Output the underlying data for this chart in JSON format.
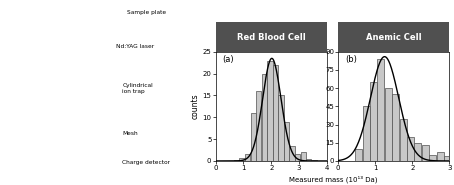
{
  "panel_a_title": "Red Blood Cell",
  "panel_b_title": "Anemic Cell",
  "panel_a_label": "(a)",
  "panel_b_label": "(b)",
  "xlabel": "Measured mass (10¹³ Da)",
  "ylabel": "counts",
  "panel_a_xlim": [
    0,
    4
  ],
  "panel_a_ylim": [
    0,
    25
  ],
  "panel_b_xlim": [
    0,
    3
  ],
  "panel_b_ylim": [
    0,
    90
  ],
  "panel_a_yticks": [
    0,
    5,
    10,
    15,
    20,
    25
  ],
  "panel_b_yticks": [
    0,
    15,
    30,
    45,
    60,
    75,
    90
  ],
  "panel_a_xticks": [
    0,
    1,
    2,
    3,
    4
  ],
  "panel_b_xticks": [
    0,
    1,
    2,
    3
  ],
  "bar_color": "#c8c8c8",
  "bar_edgecolor": "#505050",
  "curve_color": "#000000",
  "title_bg_color": "#505050",
  "title_text_color": "#ffffff",
  "panel_a_bar_centers": [
    0.75,
    0.95,
    1.15,
    1.35,
    1.55,
    1.75,
    1.95,
    2.15,
    2.35,
    2.55,
    2.75,
    2.95,
    3.15,
    3.35,
    3.55
  ],
  "panel_a_bar_heights": [
    0.3,
    0.7,
    1.5,
    11.0,
    16.0,
    20.0,
    23.0,
    22.0,
    15.0,
    9.0,
    3.5,
    1.5,
    2.0,
    0.5,
    0.3
  ],
  "panel_a_gauss_mean": 2.02,
  "panel_a_gauss_std": 0.33,
  "panel_a_gauss_amp": 23.5,
  "panel_b_bar_centers": [
    0.55,
    0.75,
    0.95,
    1.15,
    1.35,
    1.55,
    1.75,
    1.95,
    2.15,
    2.35,
    2.55,
    2.75,
    2.95
  ],
  "panel_b_bar_heights": [
    10.0,
    45.0,
    65.0,
    84.0,
    60.0,
    55.0,
    35.0,
    20.0,
    15.0,
    13.0,
    5.0,
    7.0,
    4.0
  ],
  "panel_b_gauss_mean": 1.25,
  "panel_b_gauss_std": 0.38,
  "panel_b_gauss_amp": 86.0,
  "bar_width": 0.19
}
